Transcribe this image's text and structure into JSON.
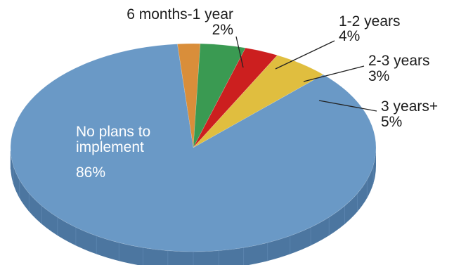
{
  "chart_data": {
    "type": "pie",
    "style": "3d-tilted",
    "slices": [
      {
        "label": "6 months-1 year",
        "value_label": "2%",
        "value": 2,
        "color": "#D98E3A"
      },
      {
        "label": "1-2 years",
        "value_label": "4%",
        "value": 4,
        "color": "#3A9A52"
      },
      {
        "label": "2-3 years",
        "value_label": "3%",
        "value": 3,
        "color": "#CC1F1F"
      },
      {
        "label": "3 years+",
        "value_label": "5%",
        "value": 5,
        "color": "#E0BE3F"
      },
      {
        "label": "No plans to implement",
        "label_lines": [
          "No plans to",
          "implement"
        ],
        "value_label": "86%",
        "value": 86,
        "color": "#6A99C6",
        "side_color": "#4C76A0"
      }
    ]
  }
}
